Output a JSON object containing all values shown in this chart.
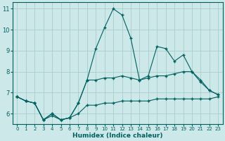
{
  "xlabel": "Humidex (Indice chaleur)",
  "background_color": "#cce8e8",
  "grid_color": "#aacccc",
  "line_color": "#006060",
  "xlim": [
    -0.5,
    23.5
  ],
  "ylim": [
    5.5,
    11.3
  ],
  "yticks": [
    6,
    7,
    8,
    9,
    10,
    11
  ],
  "xticks": [
    0,
    1,
    2,
    3,
    4,
    5,
    6,
    7,
    8,
    9,
    10,
    11,
    12,
    13,
    14,
    15,
    16,
    17,
    18,
    19,
    20,
    21,
    22,
    23
  ],
  "line1_x": [
    0,
    1,
    2,
    3,
    4,
    5,
    6,
    7,
    8,
    9,
    10,
    11,
    12,
    13,
    14,
    15,
    16,
    17,
    18,
    19,
    20,
    21,
    22,
    23
  ],
  "line1_y": [
    6.8,
    6.6,
    6.5,
    5.7,
    5.9,
    5.7,
    5.8,
    6.0,
    6.4,
    6.4,
    6.5,
    6.5,
    6.6,
    6.6,
    6.6,
    6.6,
    6.7,
    6.7,
    6.7,
    6.7,
    6.7,
    6.7,
    6.7,
    6.8
  ],
  "line2_x": [
    0,
    1,
    2,
    3,
    4,
    5,
    6,
    7,
    8,
    9,
    10,
    11,
    12,
    13,
    14,
    15,
    16,
    17,
    18,
    19,
    20,
    21,
    22,
    23
  ],
  "line2_y": [
    6.8,
    6.6,
    6.5,
    5.7,
    6.0,
    5.7,
    5.8,
    6.5,
    7.6,
    7.6,
    7.7,
    7.7,
    7.8,
    7.7,
    7.6,
    7.7,
    7.8,
    7.8,
    7.9,
    8.0,
    8.0,
    7.5,
    7.1,
    6.9
  ],
  "line3_x": [
    0,
    1,
    2,
    3,
    4,
    5,
    6,
    7,
    8,
    9,
    10,
    11,
    12,
    13,
    14,
    15,
    16,
    17,
    18,
    19,
    20,
    21,
    22,
    23
  ],
  "line3_y": [
    6.8,
    6.6,
    6.5,
    5.7,
    6.0,
    5.7,
    5.8,
    6.5,
    7.6,
    9.1,
    10.1,
    11.0,
    10.7,
    9.6,
    7.6,
    7.8,
    9.2,
    9.1,
    8.5,
    8.8,
    8.0,
    7.6,
    7.1,
    6.9
  ]
}
